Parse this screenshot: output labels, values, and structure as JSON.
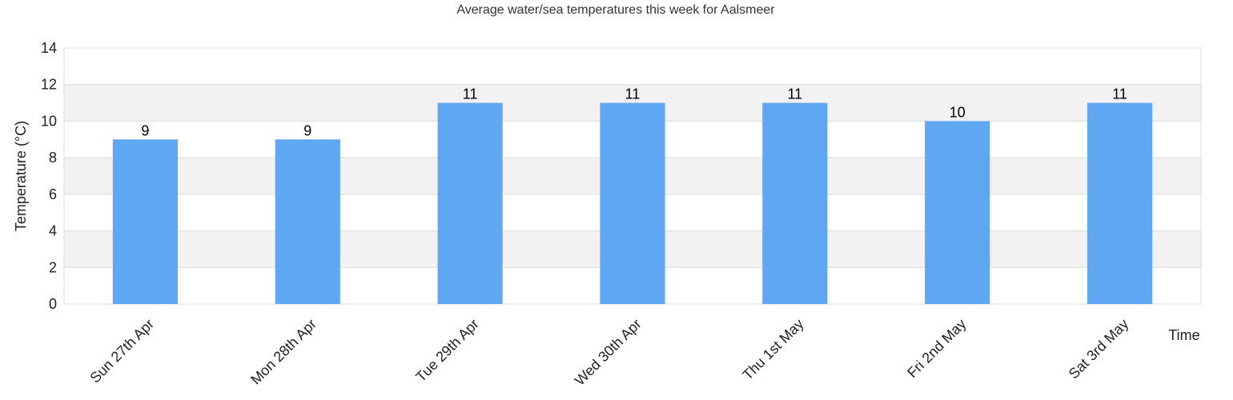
{
  "chart_data": {
    "type": "bar",
    "title": "Average water/sea temperatures this week for Aalsmeer",
    "xlabel": "Time",
    "ylabel": "Temperature (°C)",
    "categories": [
      "Sun 27th Apr",
      "Mon 28th Apr",
      "Tue 29th Apr",
      "Wed 30th Apr",
      "Thu 1st May",
      "Fri 2nd May",
      "Sat 3rd May"
    ],
    "values": [
      9,
      9,
      11,
      11,
      11,
      10,
      11
    ],
    "data_labels": [
      "9",
      "9",
      "11",
      "11",
      "11",
      "10",
      "11"
    ],
    "ylim": [
      0,
      14
    ],
    "yticks": [
      0,
      2,
      4,
      6,
      8,
      10,
      12,
      14
    ],
    "ytick_labels": [
      "0",
      "2",
      "4",
      "6",
      "8",
      "10",
      "12",
      "14"
    ],
    "grid": true,
    "colors": {
      "bar": "#60a7f3",
      "band": "#f2f2f2",
      "grid": "#dcdcdc"
    }
  }
}
